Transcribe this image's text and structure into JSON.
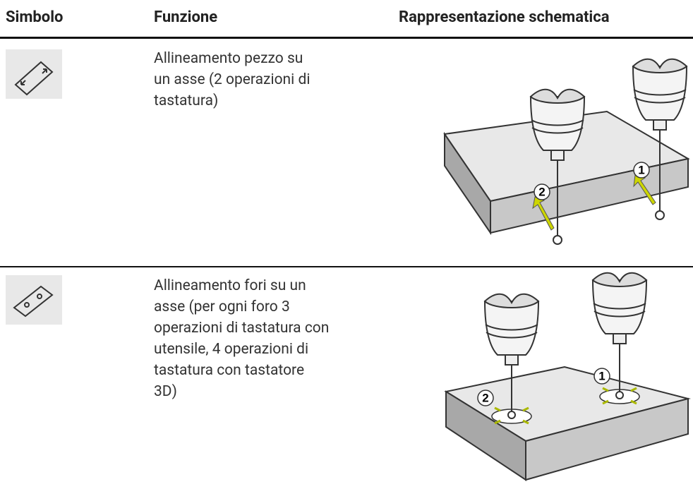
{
  "table": {
    "headers": [
      "Simbolo",
      "Funzione",
      "Rappresentazione schematica"
    ],
    "rows": [
      {
        "function": [
          "Allineamento pezzo su",
          "un asse (2 operazioni di",
          "tastatura)"
        ],
        "markers": [
          "1",
          "2"
        ]
      },
      {
        "function": [
          "Allineamento fori su un",
          "asse (per ogni foro 3",
          "operazioni di tastatura con",
          "utensile, 4 operazioni di",
          "tastatura con tastatore",
          "3D)"
        ],
        "markers": [
          "1",
          "2"
        ]
      }
    ]
  }
}
